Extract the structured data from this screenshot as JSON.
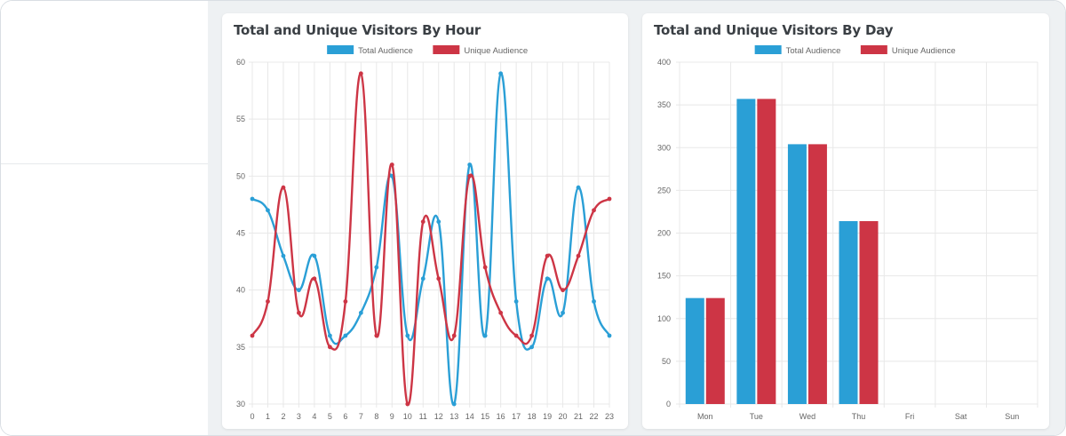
{
  "colors": {
    "total": "#2a9fd6",
    "unique": "#cd3545",
    "grid": "#e8e8e8"
  },
  "charts": [
    {
      "title": "Total and Unique Visitors By Hour",
      "chart_data": {
        "type": "line",
        "x": [
          "0",
          "1",
          "2",
          "3",
          "4",
          "5",
          "6",
          "7",
          "8",
          "9",
          "10",
          "11",
          "12",
          "13",
          "14",
          "15",
          "16",
          "17",
          "18",
          "19",
          "20",
          "21",
          "22",
          "23"
        ],
        "ylim": [
          30,
          60
        ],
        "yticks": [
          "30",
          "35",
          "40",
          "45",
          "50",
          "55",
          "60"
        ],
        "legend_position": "top-center",
        "grid": true,
        "series": [
          {
            "name": "Total Audience",
            "values": [
              48,
              47,
              43,
              40,
              43,
              36,
              36,
              38,
              42,
              50,
              36,
              41,
              46,
              30,
              51,
              36,
              59,
              39,
              35,
              41,
              38,
              49,
              39,
              36
            ]
          },
          {
            "name": "Unique Audience",
            "values": [
              36,
              39,
              49,
              38,
              41,
              35,
              39,
              59,
              36,
              51,
              30,
              46,
              41,
              36,
              50,
              42,
              38,
              36,
              36,
              43,
              40,
              43,
              47,
              48
            ]
          }
        ]
      }
    },
    {
      "title": "Total and Unique Visitors By Day",
      "chart_data": {
        "type": "bar",
        "categories": [
          "Mon",
          "Tue",
          "Wed",
          "Thu",
          "Fri",
          "Sat",
          "Sun"
        ],
        "ylim": [
          0,
          400
        ],
        "yticks": [
          "0",
          "50",
          "100",
          "150",
          "200",
          "250",
          "300",
          "350",
          "400"
        ],
        "legend_position": "top-center",
        "grid": true,
        "series": [
          {
            "name": "Total Audience",
            "values": [
              124,
              357,
              304,
              214,
              0,
              0,
              0
            ]
          },
          {
            "name": "Unique Audience",
            "values": [
              124,
              357,
              304,
              214,
              0,
              0,
              0
            ]
          }
        ]
      }
    }
  ]
}
